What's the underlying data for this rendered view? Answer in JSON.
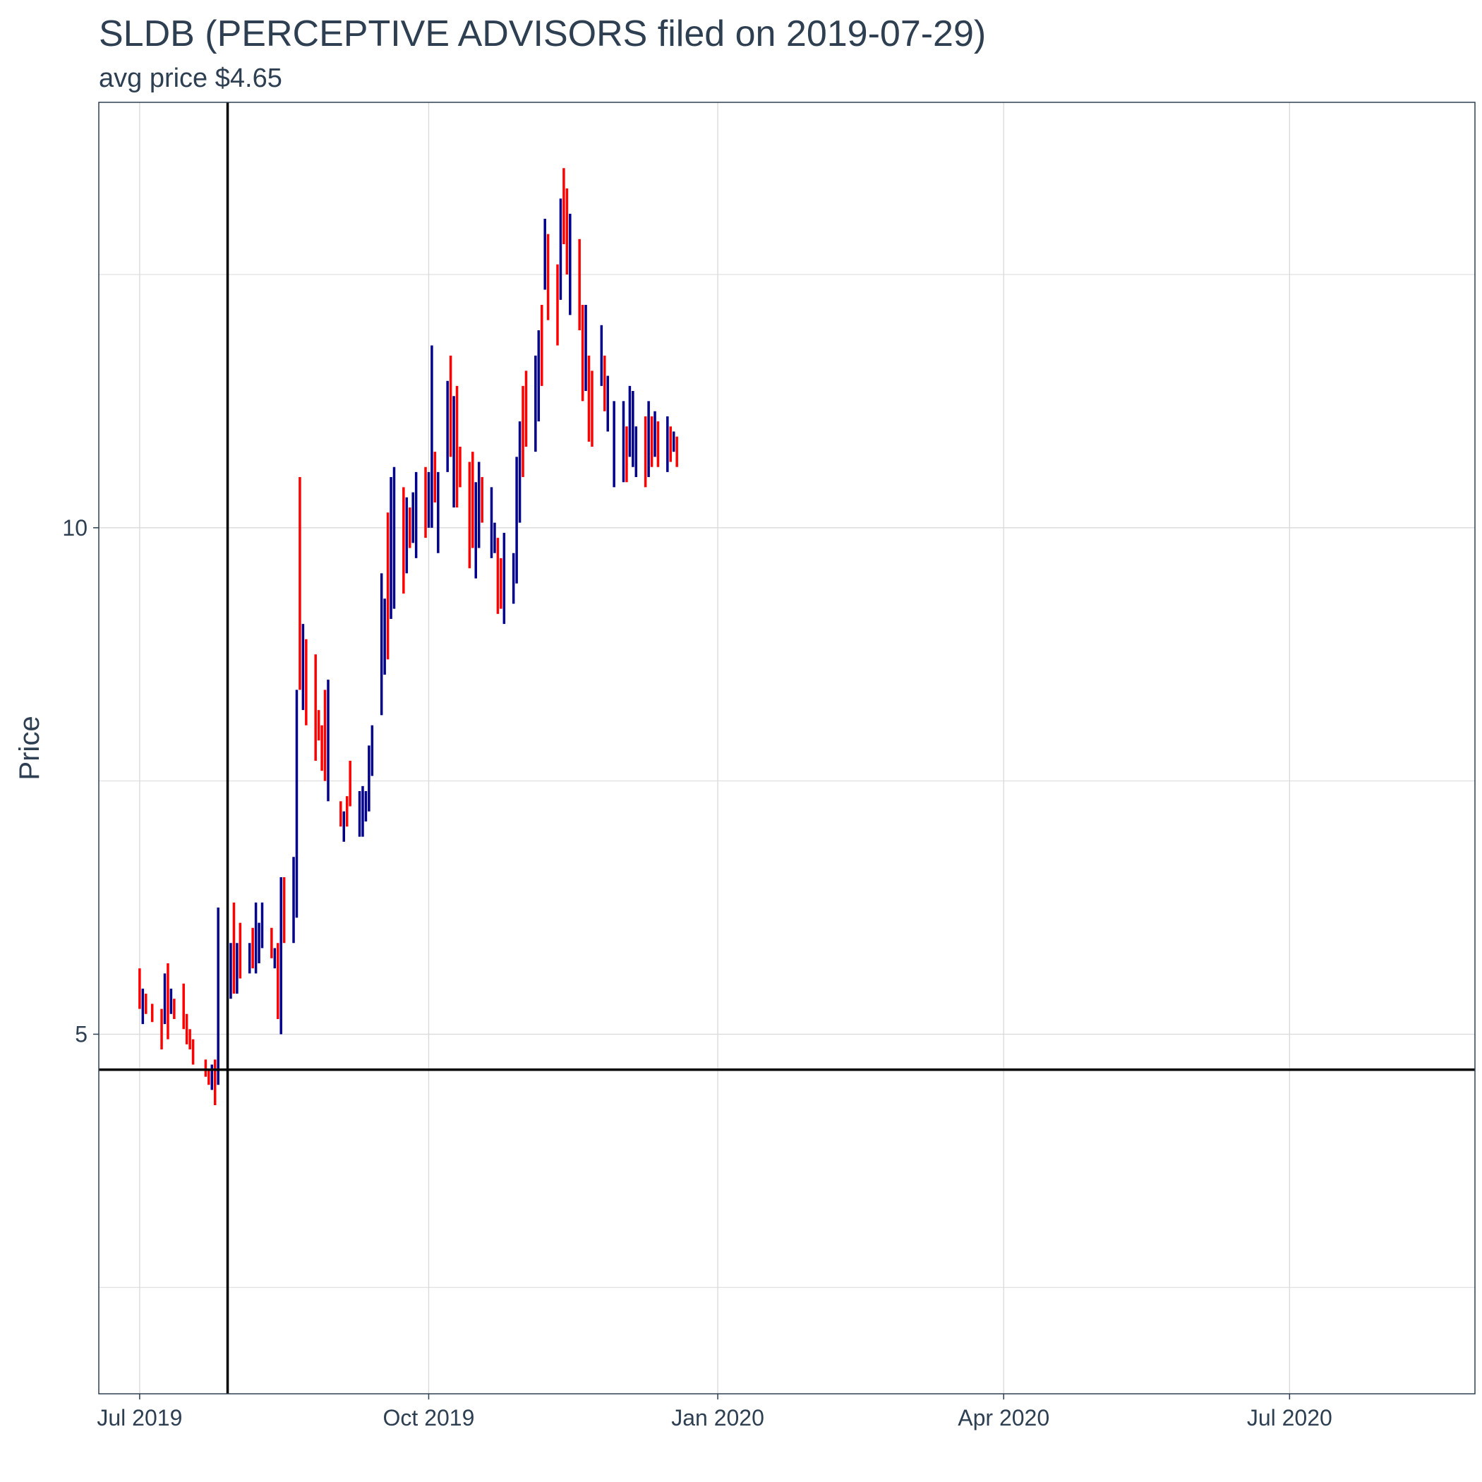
{
  "chart_data": {
    "type": "ohlc",
    "title": "SLDB (PERCEPTIVE ADVISORS filed on 2019-07-29)",
    "subtitle": "avg price $4.65",
    "ylabel": "Price",
    "xlabel": "",
    "xlim": [
      "2019-06-18",
      "2020-08-29"
    ],
    "ylim": [
      1.45,
      14.2
    ],
    "x_ticks": [
      {
        "date": "2019-07-01",
        "label": "Jul 2019"
      },
      {
        "date": "2019-10-01",
        "label": "Oct 2019"
      },
      {
        "date": "2020-01-01",
        "label": "Jan 2020"
      },
      {
        "date": "2020-04-01",
        "label": "Apr 2020"
      },
      {
        "date": "2020-07-01",
        "label": "Jul 2020"
      }
    ],
    "y_ticks": [
      {
        "value": 5,
        "label": "5"
      },
      {
        "value": 10,
        "label": "10"
      }
    ],
    "y_minor_grid": [
      2.5,
      7.5,
      12.5
    ],
    "grid": true,
    "reference_lines": {
      "vline_date": "2019-07-29",
      "hline_value": 4.65
    },
    "colors": {
      "up": "#00008b",
      "down": "#ff0000",
      "reference": "#000000",
      "grid": "#d9d9d9",
      "panel_border": "#2e3f52",
      "text": "#2e3f52"
    },
    "series": [
      {
        "name": "SLDB",
        "points": [
          [
            "2019-07-01",
            5.65,
            5.25,
            "d"
          ],
          [
            "2019-07-02",
            5.45,
            5.1,
            "u"
          ],
          [
            "2019-07-03",
            5.4,
            5.2,
            "d"
          ],
          [
            "2019-07-05",
            5.3,
            5.12,
            "d"
          ],
          [
            "2019-07-08",
            5.25,
            4.85,
            "d"
          ],
          [
            "2019-07-09",
            5.6,
            5.1,
            "u"
          ],
          [
            "2019-07-10",
            5.7,
            4.95,
            "d"
          ],
          [
            "2019-07-11",
            5.45,
            5.2,
            "u"
          ],
          [
            "2019-07-12",
            5.35,
            5.15,
            "d"
          ],
          [
            "2019-07-15",
            5.5,
            5.05,
            "d"
          ],
          [
            "2019-07-16",
            5.2,
            4.9,
            "d"
          ],
          [
            "2019-07-17",
            5.05,
            4.85,
            "d"
          ],
          [
            "2019-07-18",
            4.95,
            4.7,
            "d"
          ],
          [
            "2019-07-22",
            4.75,
            4.58,
            "d"
          ],
          [
            "2019-07-23",
            4.65,
            4.5,
            "d"
          ],
          [
            "2019-07-24",
            4.7,
            4.45,
            "u"
          ],
          [
            "2019-07-25",
            4.75,
            4.3,
            "d"
          ],
          [
            "2019-07-26",
            6.25,
            4.5,
            "u"
          ],
          [
            "2019-07-30",
            5.9,
            5.35,
            "u"
          ],
          [
            "2019-07-31",
            6.3,
            5.4,
            "d"
          ],
          [
            "2019-08-01",
            5.9,
            5.4,
            "u"
          ],
          [
            "2019-08-02",
            6.1,
            5.55,
            "d"
          ],
          [
            "2019-08-05",
            5.9,
            5.6,
            "u"
          ],
          [
            "2019-08-06",
            6.05,
            5.65,
            "d"
          ],
          [
            "2019-08-07",
            6.3,
            5.6,
            "u"
          ],
          [
            "2019-08-08",
            6.1,
            5.7,
            "u"
          ],
          [
            "2019-08-09",
            6.3,
            5.85,
            "u"
          ],
          [
            "2019-08-12",
            6.05,
            5.75,
            "d"
          ],
          [
            "2019-08-13",
            5.85,
            5.65,
            "u"
          ],
          [
            "2019-08-14",
            5.9,
            5.15,
            "d"
          ],
          [
            "2019-08-15",
            6.55,
            5.0,
            "u"
          ],
          [
            "2019-08-16",
            6.55,
            5.9,
            "d"
          ],
          [
            "2019-08-19",
            6.75,
            5.9,
            "u"
          ],
          [
            "2019-08-20",
            8.4,
            6.15,
            "u"
          ],
          [
            "2019-08-21",
            10.5,
            8.4,
            "d"
          ],
          [
            "2019-08-22",
            9.05,
            8.2,
            "u"
          ],
          [
            "2019-08-23",
            8.9,
            8.05,
            "d"
          ],
          [
            "2019-08-26",
            8.75,
            7.7,
            "d"
          ],
          [
            "2019-08-27",
            8.2,
            7.9,
            "d"
          ],
          [
            "2019-08-28",
            8.05,
            7.6,
            "d"
          ],
          [
            "2019-08-29",
            8.4,
            7.5,
            "d"
          ],
          [
            "2019-08-30",
            8.5,
            7.3,
            "u"
          ],
          [
            "2019-09-03",
            7.3,
            7.05,
            "d"
          ],
          [
            "2019-09-04",
            7.2,
            6.9,
            "u"
          ],
          [
            "2019-09-05",
            7.35,
            7.05,
            "d"
          ],
          [
            "2019-09-06",
            7.7,
            7.25,
            "d"
          ],
          [
            "2019-09-09",
            7.4,
            6.95,
            "u"
          ],
          [
            "2019-09-10",
            7.45,
            6.95,
            "u"
          ],
          [
            "2019-09-11",
            7.4,
            7.1,
            "u"
          ],
          [
            "2019-09-12",
            7.85,
            7.2,
            "u"
          ],
          [
            "2019-09-13",
            8.05,
            7.55,
            "u"
          ],
          [
            "2019-09-16",
            9.55,
            8.15,
            "u"
          ],
          [
            "2019-09-17",
            9.3,
            8.55,
            "u"
          ],
          [
            "2019-09-18",
            10.15,
            8.7,
            "d"
          ],
          [
            "2019-09-19",
            10.5,
            9.1,
            "u"
          ],
          [
            "2019-09-20",
            10.6,
            9.2,
            "u"
          ],
          [
            "2019-09-23",
            10.4,
            9.35,
            "d"
          ],
          [
            "2019-09-24",
            10.3,
            9.55,
            "u"
          ],
          [
            "2019-09-25",
            10.2,
            9.8,
            "d"
          ],
          [
            "2019-09-26",
            10.35,
            9.85,
            "u"
          ],
          [
            "2019-09-27",
            10.55,
            9.7,
            "u"
          ],
          [
            "2019-09-30",
            10.6,
            9.9,
            "d"
          ],
          [
            "2019-10-01",
            10.55,
            10.0,
            "u"
          ],
          [
            "2019-10-02",
            11.8,
            10.0,
            "u"
          ],
          [
            "2019-10-03",
            10.75,
            10.25,
            "d"
          ],
          [
            "2019-10-04",
            10.55,
            9.75,
            "u"
          ],
          [
            "2019-10-07",
            11.45,
            10.55,
            "u"
          ],
          [
            "2019-10-08",
            11.7,
            10.7,
            "d"
          ],
          [
            "2019-10-09",
            11.3,
            10.2,
            "u"
          ],
          [
            "2019-10-10",
            11.4,
            10.2,
            "d"
          ],
          [
            "2019-10-11",
            10.8,
            10.4,
            "d"
          ],
          [
            "2019-10-14",
            10.65,
            9.6,
            "d"
          ],
          [
            "2019-10-15",
            10.75,
            9.8,
            "d"
          ],
          [
            "2019-10-16",
            10.45,
            9.5,
            "u"
          ],
          [
            "2019-10-17",
            10.65,
            9.8,
            "u"
          ],
          [
            "2019-10-18",
            10.5,
            10.05,
            "d"
          ],
          [
            "2019-10-21",
            10.4,
            9.7,
            "u"
          ],
          [
            "2019-10-22",
            10.05,
            9.75,
            "u"
          ],
          [
            "2019-10-23",
            9.9,
            9.15,
            "d"
          ],
          [
            "2019-10-24",
            9.7,
            9.2,
            "d"
          ],
          [
            "2019-10-25",
            9.95,
            9.05,
            "u"
          ],
          [
            "2019-10-28",
            9.75,
            9.25,
            "u"
          ],
          [
            "2019-10-29",
            10.7,
            9.45,
            "u"
          ],
          [
            "2019-10-30",
            11.05,
            10.05,
            "u"
          ],
          [
            "2019-10-31",
            11.4,
            10.5,
            "d"
          ],
          [
            "2019-11-01",
            11.55,
            10.8,
            "d"
          ],
          [
            "2019-11-04",
            11.7,
            10.75,
            "u"
          ],
          [
            "2019-11-05",
            11.95,
            11.05,
            "u"
          ],
          [
            "2019-11-06",
            12.2,
            11.4,
            "d"
          ],
          [
            "2019-11-07",
            13.05,
            12.35,
            "u"
          ],
          [
            "2019-11-08",
            12.9,
            12.05,
            "d"
          ],
          [
            "2019-11-11",
            12.6,
            11.8,
            "d"
          ],
          [
            "2019-11-12",
            13.25,
            12.25,
            "u"
          ],
          [
            "2019-11-13",
            13.55,
            12.8,
            "d"
          ],
          [
            "2019-11-14",
            13.35,
            12.5,
            "d"
          ],
          [
            "2019-11-15",
            13.1,
            12.1,
            "u"
          ],
          [
            "2019-11-18",
            12.85,
            11.95,
            "d"
          ],
          [
            "2019-11-19",
            12.2,
            11.25,
            "d"
          ],
          [
            "2019-11-20",
            12.2,
            11.35,
            "u"
          ],
          [
            "2019-11-21",
            11.7,
            10.85,
            "d"
          ],
          [
            "2019-11-22",
            11.55,
            10.8,
            "d"
          ],
          [
            "2019-11-25",
            12.0,
            11.4,
            "u"
          ],
          [
            "2019-11-26",
            11.7,
            11.15,
            "d"
          ],
          [
            "2019-11-27",
            11.5,
            10.95,
            "u"
          ],
          [
            "2019-11-29",
            11.25,
            10.4,
            "u"
          ],
          [
            "2019-12-02",
            11.25,
            10.45,
            "u"
          ],
          [
            "2019-12-03",
            11.0,
            10.45,
            "d"
          ],
          [
            "2019-12-04",
            11.4,
            10.7,
            "u"
          ],
          [
            "2019-12-05",
            11.35,
            10.6,
            "u"
          ],
          [
            "2019-12-06",
            11.0,
            10.5,
            "u"
          ],
          [
            "2019-12-09",
            11.1,
            10.4,
            "d"
          ],
          [
            "2019-12-10",
            11.25,
            10.5,
            "u"
          ],
          [
            "2019-12-11",
            11.1,
            10.6,
            "d"
          ],
          [
            "2019-12-12",
            11.15,
            10.7,
            "u"
          ],
          [
            "2019-12-13",
            11.05,
            10.6,
            "d"
          ],
          [
            "2019-12-16",
            11.1,
            10.55,
            "u"
          ],
          [
            "2019-12-17",
            11.0,
            10.65,
            "d"
          ],
          [
            "2019-12-18",
            10.95,
            10.75,
            "u"
          ],
          [
            "2019-12-19",
            10.9,
            10.6,
            "d"
          ]
        ]
      }
    ]
  }
}
